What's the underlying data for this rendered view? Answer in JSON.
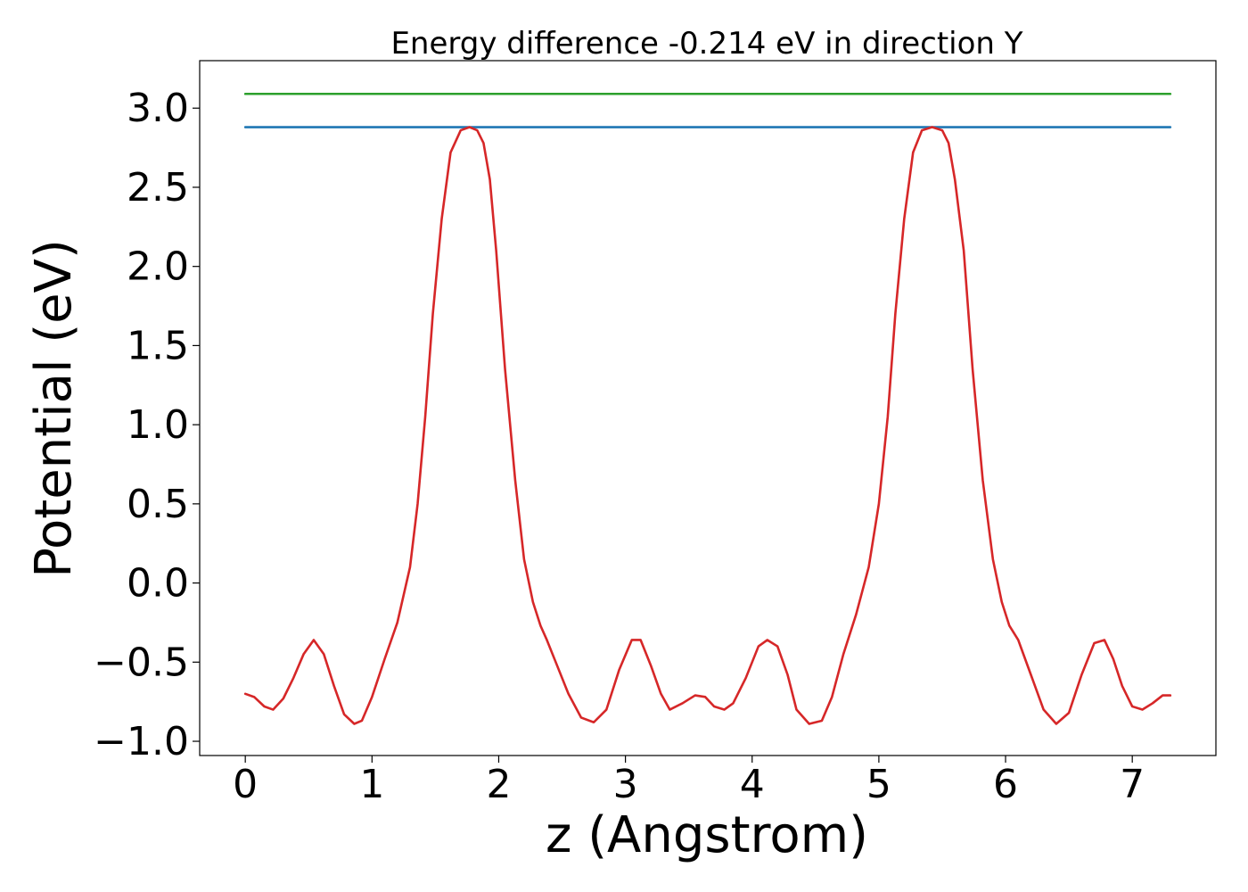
{
  "chart_data": {
    "type": "line",
    "title": "Energy difference -0.214 eV in direction Y",
    "xlabel": "z (Angstrom)",
    "ylabel": "Potential (eV)",
    "xlim": [
      -0.36,
      7.66
    ],
    "ylim": [
      -1.09,
      3.3
    ],
    "xticks": [
      0,
      1,
      2,
      3,
      4,
      5,
      6,
      7
    ],
    "xtick_labels": [
      "0",
      "1",
      "2",
      "3",
      "4",
      "5",
      "6",
      "7"
    ],
    "yticks": [
      -1.0,
      -0.5,
      0.0,
      0.5,
      1.0,
      1.5,
      2.0,
      2.5,
      3.0
    ],
    "ytick_labels": [
      "−1.0",
      "−0.5",
      "0.0",
      "0.5",
      "1.0",
      "1.5",
      "2.0",
      "2.5",
      "3.0"
    ],
    "grid": false,
    "legend": "none",
    "series": [
      {
        "color": "#2ca02c",
        "x": [
          0,
          7.3
        ],
        "y": [
          3.09,
          3.09
        ]
      },
      {
        "color": "#1f77b4",
        "x": [
          0,
          7.3
        ],
        "y": [
          2.88,
          2.88
        ]
      },
      {
        "color": "#d62728",
        "x": [
          0,
          0.07,
          0.15,
          0.22,
          0.3,
          0.38,
          0.46,
          0.54,
          0.62,
          0.7,
          0.78,
          0.86,
          0.92,
          1.0,
          1.1,
          1.2,
          1.3,
          1.36,
          1.42,
          1.48,
          1.55,
          1.62,
          1.7,
          1.77,
          1.83,
          1.88,
          1.93,
          1.98,
          2.05,
          2.13,
          2.2,
          2.27,
          2.33,
          2.38,
          2.45,
          2.55,
          2.65,
          2.75,
          2.85,
          2.95,
          3.05,
          3.12,
          3.2,
          3.28,
          3.35,
          3.45,
          3.55,
          3.63,
          3.7,
          3.78,
          3.85,
          3.95,
          4.05,
          4.12,
          4.2,
          4.28,
          4.35,
          4.45,
          4.55,
          4.63,
          4.72,
          4.82,
          4.92,
          5.0,
          5.07,
          5.13,
          5.2,
          5.27,
          5.34,
          5.42,
          5.5,
          5.55,
          5.6,
          5.67,
          5.74,
          5.82,
          5.9,
          5.97,
          6.03,
          6.1,
          6.2,
          6.3,
          6.4,
          6.5,
          6.6,
          6.7,
          6.78,
          6.85,
          6.92,
          7.0,
          7.08,
          7.16,
          7.24,
          7.3
        ],
        "y": [
          -0.7,
          -0.72,
          -0.78,
          -0.8,
          -0.73,
          -0.6,
          -0.45,
          -0.36,
          -0.45,
          -0.65,
          -0.83,
          -0.89,
          -0.87,
          -0.72,
          -0.48,
          -0.25,
          0.1,
          0.5,
          1.05,
          1.7,
          2.3,
          2.72,
          2.86,
          2.88,
          2.86,
          2.78,
          2.55,
          2.1,
          1.35,
          0.65,
          0.15,
          -0.12,
          -0.27,
          -0.36,
          -0.5,
          -0.7,
          -0.85,
          -0.88,
          -0.8,
          -0.55,
          -0.36,
          -0.36,
          -0.52,
          -0.7,
          -0.8,
          -0.76,
          -0.71,
          -0.72,
          -0.78,
          -0.8,
          -0.76,
          -0.6,
          -0.4,
          -0.36,
          -0.4,
          -0.58,
          -0.8,
          -0.89,
          -0.87,
          -0.72,
          -0.45,
          -0.2,
          0.1,
          0.5,
          1.05,
          1.7,
          2.3,
          2.72,
          2.86,
          2.88,
          2.86,
          2.78,
          2.55,
          2.1,
          1.35,
          0.65,
          0.15,
          -0.12,
          -0.27,
          -0.36,
          -0.58,
          -0.8,
          -0.89,
          -0.82,
          -0.58,
          -0.38,
          -0.36,
          -0.48,
          -0.65,
          -0.78,
          -0.8,
          -0.76,
          -0.71,
          -0.71
        ]
      }
    ]
  }
}
